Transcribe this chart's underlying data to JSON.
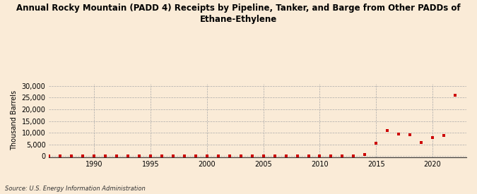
{
  "title": "Annual Rocky Mountain (PADD 4) Receipts by Pipeline, Tanker, and Barge from Other PADDs of\nEthane-Ethylene",
  "ylabel": "Thousand Barrels",
  "source": "Source: U.S. Energy Information Administration",
  "background_color": "#faebd7",
  "plot_background_color": "#faebd7",
  "marker_color": "#cc0000",
  "xlim": [
    1986,
    2023
  ],
  "ylim": [
    -500,
    31000
  ],
  "yticks": [
    0,
    5000,
    10000,
    15000,
    20000,
    25000,
    30000
  ],
  "xticks": [
    1990,
    1995,
    2000,
    2005,
    2010,
    2015,
    2020
  ],
  "data": {
    "1986": 0,
    "1987": 0,
    "1988": 0,
    "1989": 0,
    "1990": 0,
    "1991": 0,
    "1992": 0,
    "1993": 0,
    "1994": 0,
    "1995": 0,
    "1996": 0,
    "1997": 0,
    "1998": 0,
    "1999": 0,
    "2000": 0,
    "2001": 0,
    "2002": 0,
    "2003": 0,
    "2004": 0,
    "2005": 0,
    "2006": 0,
    "2007": 0,
    "2008": 0,
    "2009": 0,
    "2010": 0,
    "2011": 0,
    "2012": 0,
    "2013": 200,
    "2014": 600,
    "2015": 5500,
    "2016": 11000,
    "2017": 9500,
    "2018": 9200,
    "2019": 5800,
    "2020": 8000,
    "2021": 9000,
    "2022": 26000
  }
}
